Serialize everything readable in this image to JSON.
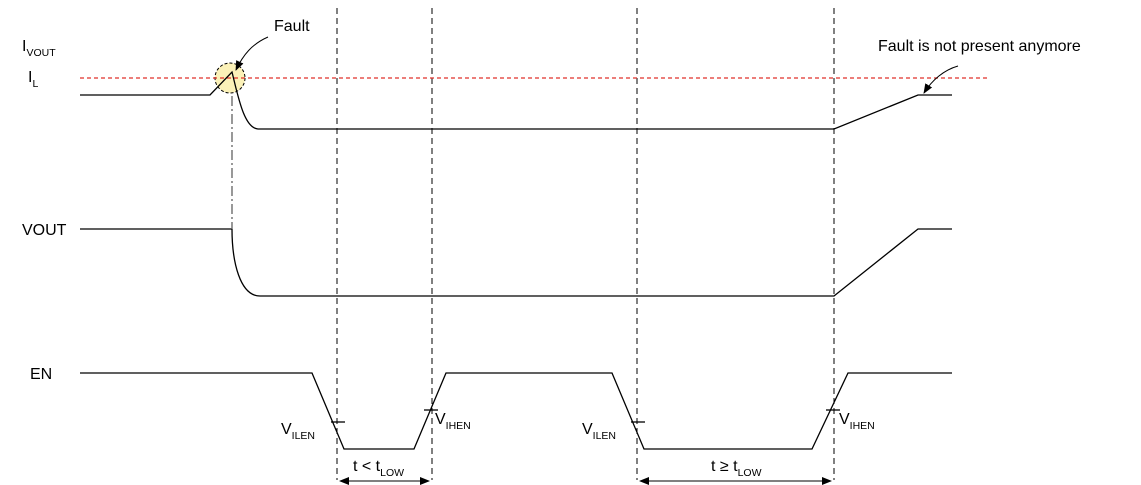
{
  "signals": {
    "ivout": {
      "main": "I",
      "sub": "VOUT"
    },
    "il": {
      "main": "I",
      "sub": "L"
    },
    "vout": "VOUT",
    "en": "EN"
  },
  "annotations": {
    "fault": "Fault",
    "fault_cleared": "Fault is not present anymore"
  },
  "thresholds": {
    "vilen": {
      "main": "V",
      "sub": "ILEN"
    },
    "vihen": {
      "main": "V",
      "sub": "IHEN"
    }
  },
  "intervals": {
    "short": {
      "main": "t < t",
      "sub": "LOW"
    },
    "long": {
      "main": "t ≥ t",
      "sub": "LOW"
    }
  },
  "colors": {
    "limit_line": "#e0302a",
    "fault_circle_fill": "#fbf1b8",
    "trace": "#000000"
  }
}
